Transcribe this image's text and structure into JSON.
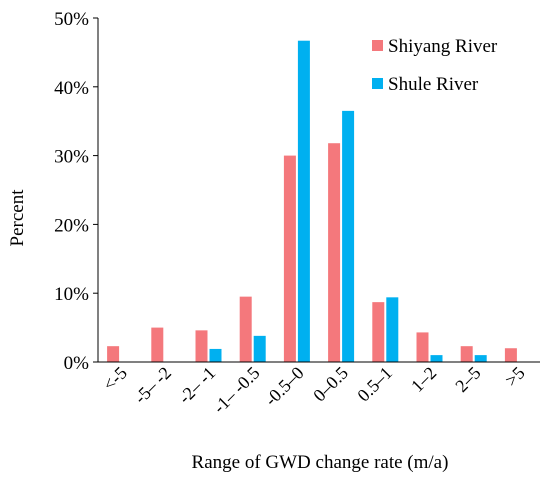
{
  "chart_data": {
    "type": "bar",
    "title": "",
    "xlabel": "Range of GWD change rate (m/a)",
    "ylabel": "Percent",
    "ylim": [
      0,
      50
    ],
    "yticks": [
      "0%",
      "10%",
      "20%",
      "30%",
      "40%",
      "50%"
    ],
    "categories": [
      "<-5",
      "-5– -2",
      "-2– -1",
      "-1– -0.5",
      "-0.5–0",
      "0–0.5",
      "0.5–1",
      "1–2",
      "2–5",
      ">5"
    ],
    "series": [
      {
        "name": "Shiyang River",
        "color": "#f4787c",
        "values": [
          2.3,
          5.0,
          4.6,
          9.5,
          30.0,
          31.8,
          8.7,
          4.3,
          2.3,
          2.0
        ]
      },
      {
        "name": "Shule River",
        "color": "#00b0f0",
        "values": [
          0,
          0,
          1.9,
          3.8,
          46.7,
          36.5,
          9.4,
          1.0,
          1.0,
          0
        ]
      }
    ],
    "grid": false,
    "legend_position": "top-right"
  }
}
